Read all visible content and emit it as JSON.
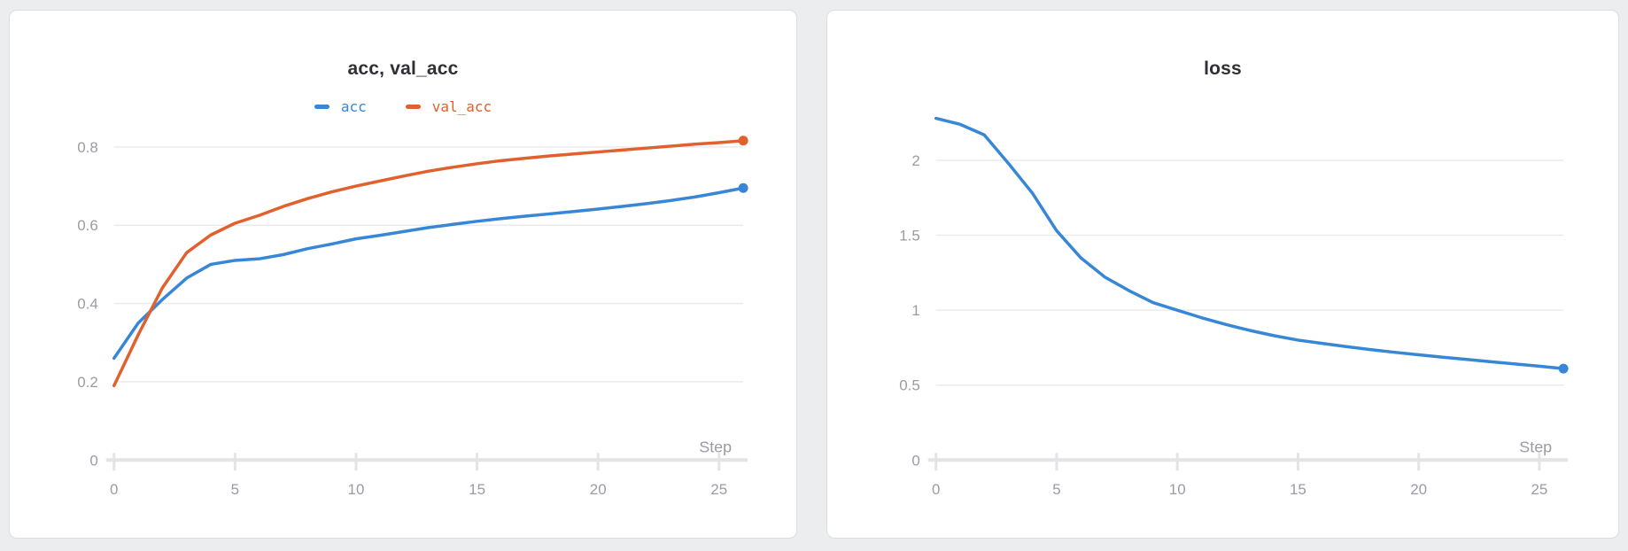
{
  "colors": {
    "page_background": "#ecedee",
    "panel_background": "#ffffff",
    "panel_border": "#dddde0",
    "title_text": "#2f2f35",
    "tick_text": "#9b9ba3",
    "gridline": "#ebebee",
    "axis_line": "#e4e4e7",
    "series_blue": "#3787d6",
    "series_orange": "#e0612d"
  },
  "chart_data": [
    {
      "type": "line",
      "title": "acc, val_acc",
      "xlabel": "Step",
      "grid": true,
      "legend_position": "top",
      "x": [
        0,
        1,
        2,
        3,
        4,
        5,
        6,
        7,
        8,
        9,
        10,
        11,
        12,
        13,
        14,
        15,
        16,
        17,
        18,
        19,
        20,
        21,
        22,
        23,
        24,
        25,
        26
      ],
      "xticks": [
        "0",
        "5",
        "10",
        "15",
        "20",
        "25"
      ],
      "xtick_values": [
        0,
        5,
        10,
        15,
        20,
        25
      ],
      "xlim": [
        0,
        26
      ],
      "yticks": [
        "0",
        "0.2",
        "0.4",
        "0.6",
        "0.8"
      ],
      "ytick_values": [
        0,
        0.2,
        0.4,
        0.6,
        0.8
      ],
      "ylim": [
        0,
        0.873
      ],
      "series": [
        {
          "name": "acc",
          "color": "#3787d6",
          "end_marker": true,
          "values": [
            0.26,
            0.35,
            0.41,
            0.465,
            0.5,
            0.51,
            0.514,
            0.525,
            0.54,
            0.552,
            0.565,
            0.574,
            0.584,
            0.594,
            0.602,
            0.61,
            0.617,
            0.623,
            0.629,
            0.635,
            0.641,
            0.648,
            0.655,
            0.663,
            0.672,
            0.683,
            0.695
          ]
        },
        {
          "name": "val_acc",
          "color": "#e0612d",
          "end_marker": true,
          "values": [
            0.19,
            0.32,
            0.44,
            0.53,
            0.575,
            0.605,
            0.625,
            0.648,
            0.668,
            0.685,
            0.7,
            0.713,
            0.726,
            0.738,
            0.748,
            0.757,
            0.765,
            0.771,
            0.777,
            0.782,
            0.787,
            0.792,
            0.797,
            0.802,
            0.807,
            0.811,
            0.816
          ]
        }
      ]
    },
    {
      "type": "line",
      "title": "loss",
      "xlabel": "Step",
      "grid": true,
      "legend_position": "none",
      "x": [
        0,
        1,
        2,
        3,
        4,
        5,
        6,
        7,
        8,
        9,
        10,
        11,
        12,
        13,
        14,
        15,
        16,
        17,
        18,
        19,
        20,
        21,
        22,
        23,
        24,
        25,
        26
      ],
      "xticks": [
        "0",
        "5",
        "10",
        "15",
        "20",
        "25"
      ],
      "xtick_values": [
        0,
        5,
        10,
        15,
        20,
        25
      ],
      "xlim": [
        0,
        26
      ],
      "yticks": [
        "0",
        "0.5",
        "1",
        "1.5",
        "2"
      ],
      "ytick_values": [
        0,
        0.5,
        1,
        1.5,
        2
      ],
      "ylim": [
        0,
        2.28
      ],
      "series": [
        {
          "name": "loss",
          "color": "#3787d6",
          "end_marker": true,
          "values": [
            2.28,
            2.24,
            2.17,
            1.98,
            1.78,
            1.53,
            1.35,
            1.22,
            1.13,
            1.05,
            1.0,
            0.95,
            0.905,
            0.865,
            0.83,
            0.8,
            0.778,
            0.757,
            0.737,
            0.719,
            0.702,
            0.686,
            0.671,
            0.656,
            0.641,
            0.626,
            0.61
          ]
        }
      ]
    }
  ]
}
